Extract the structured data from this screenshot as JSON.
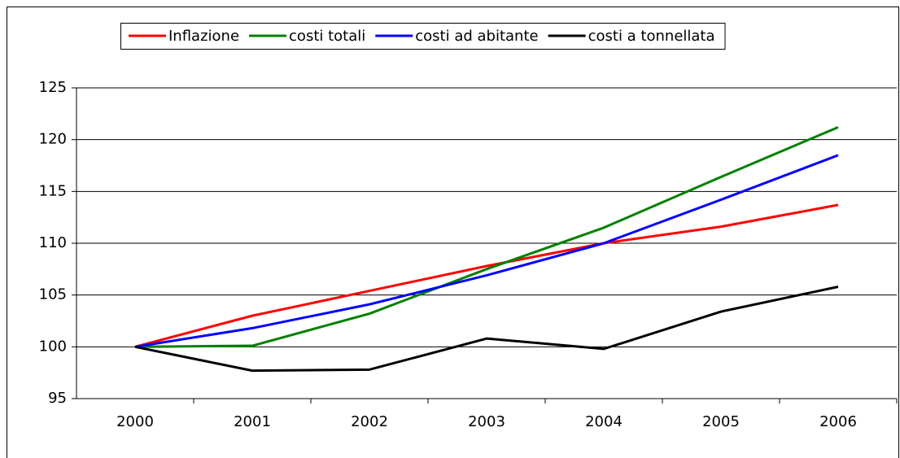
{
  "chart_data": {
    "type": "line",
    "categories": [
      "2000",
      "2001",
      "2002",
      "2003",
      "2004",
      "2005",
      "2006"
    ],
    "series": [
      {
        "name": "Inflazione",
        "color": "#ff0000",
        "values": [
          100,
          103.0,
          105.4,
          107.8,
          110.0,
          111.6,
          113.7
        ]
      },
      {
        "name": "costi totali",
        "color": "#008000",
        "values": [
          100,
          100.1,
          103.2,
          107.5,
          111.5,
          116.4,
          121.2
        ]
      },
      {
        "name": "costi ad abitante",
        "color": "#0000ff",
        "values": [
          100,
          101.8,
          104.1,
          106.9,
          110.0,
          114.2,
          118.5
        ]
      },
      {
        "name": "costi a tonnellata",
        "color": "#000000",
        "values": [
          100,
          97.7,
          97.8,
          100.8,
          99.8,
          103.4,
          105.8
        ]
      }
    ],
    "ylim": [
      95,
      125
    ],
    "yticks": [
      95,
      100,
      105,
      110,
      115,
      120,
      125
    ],
    "grid": true,
    "legend": "top"
  }
}
